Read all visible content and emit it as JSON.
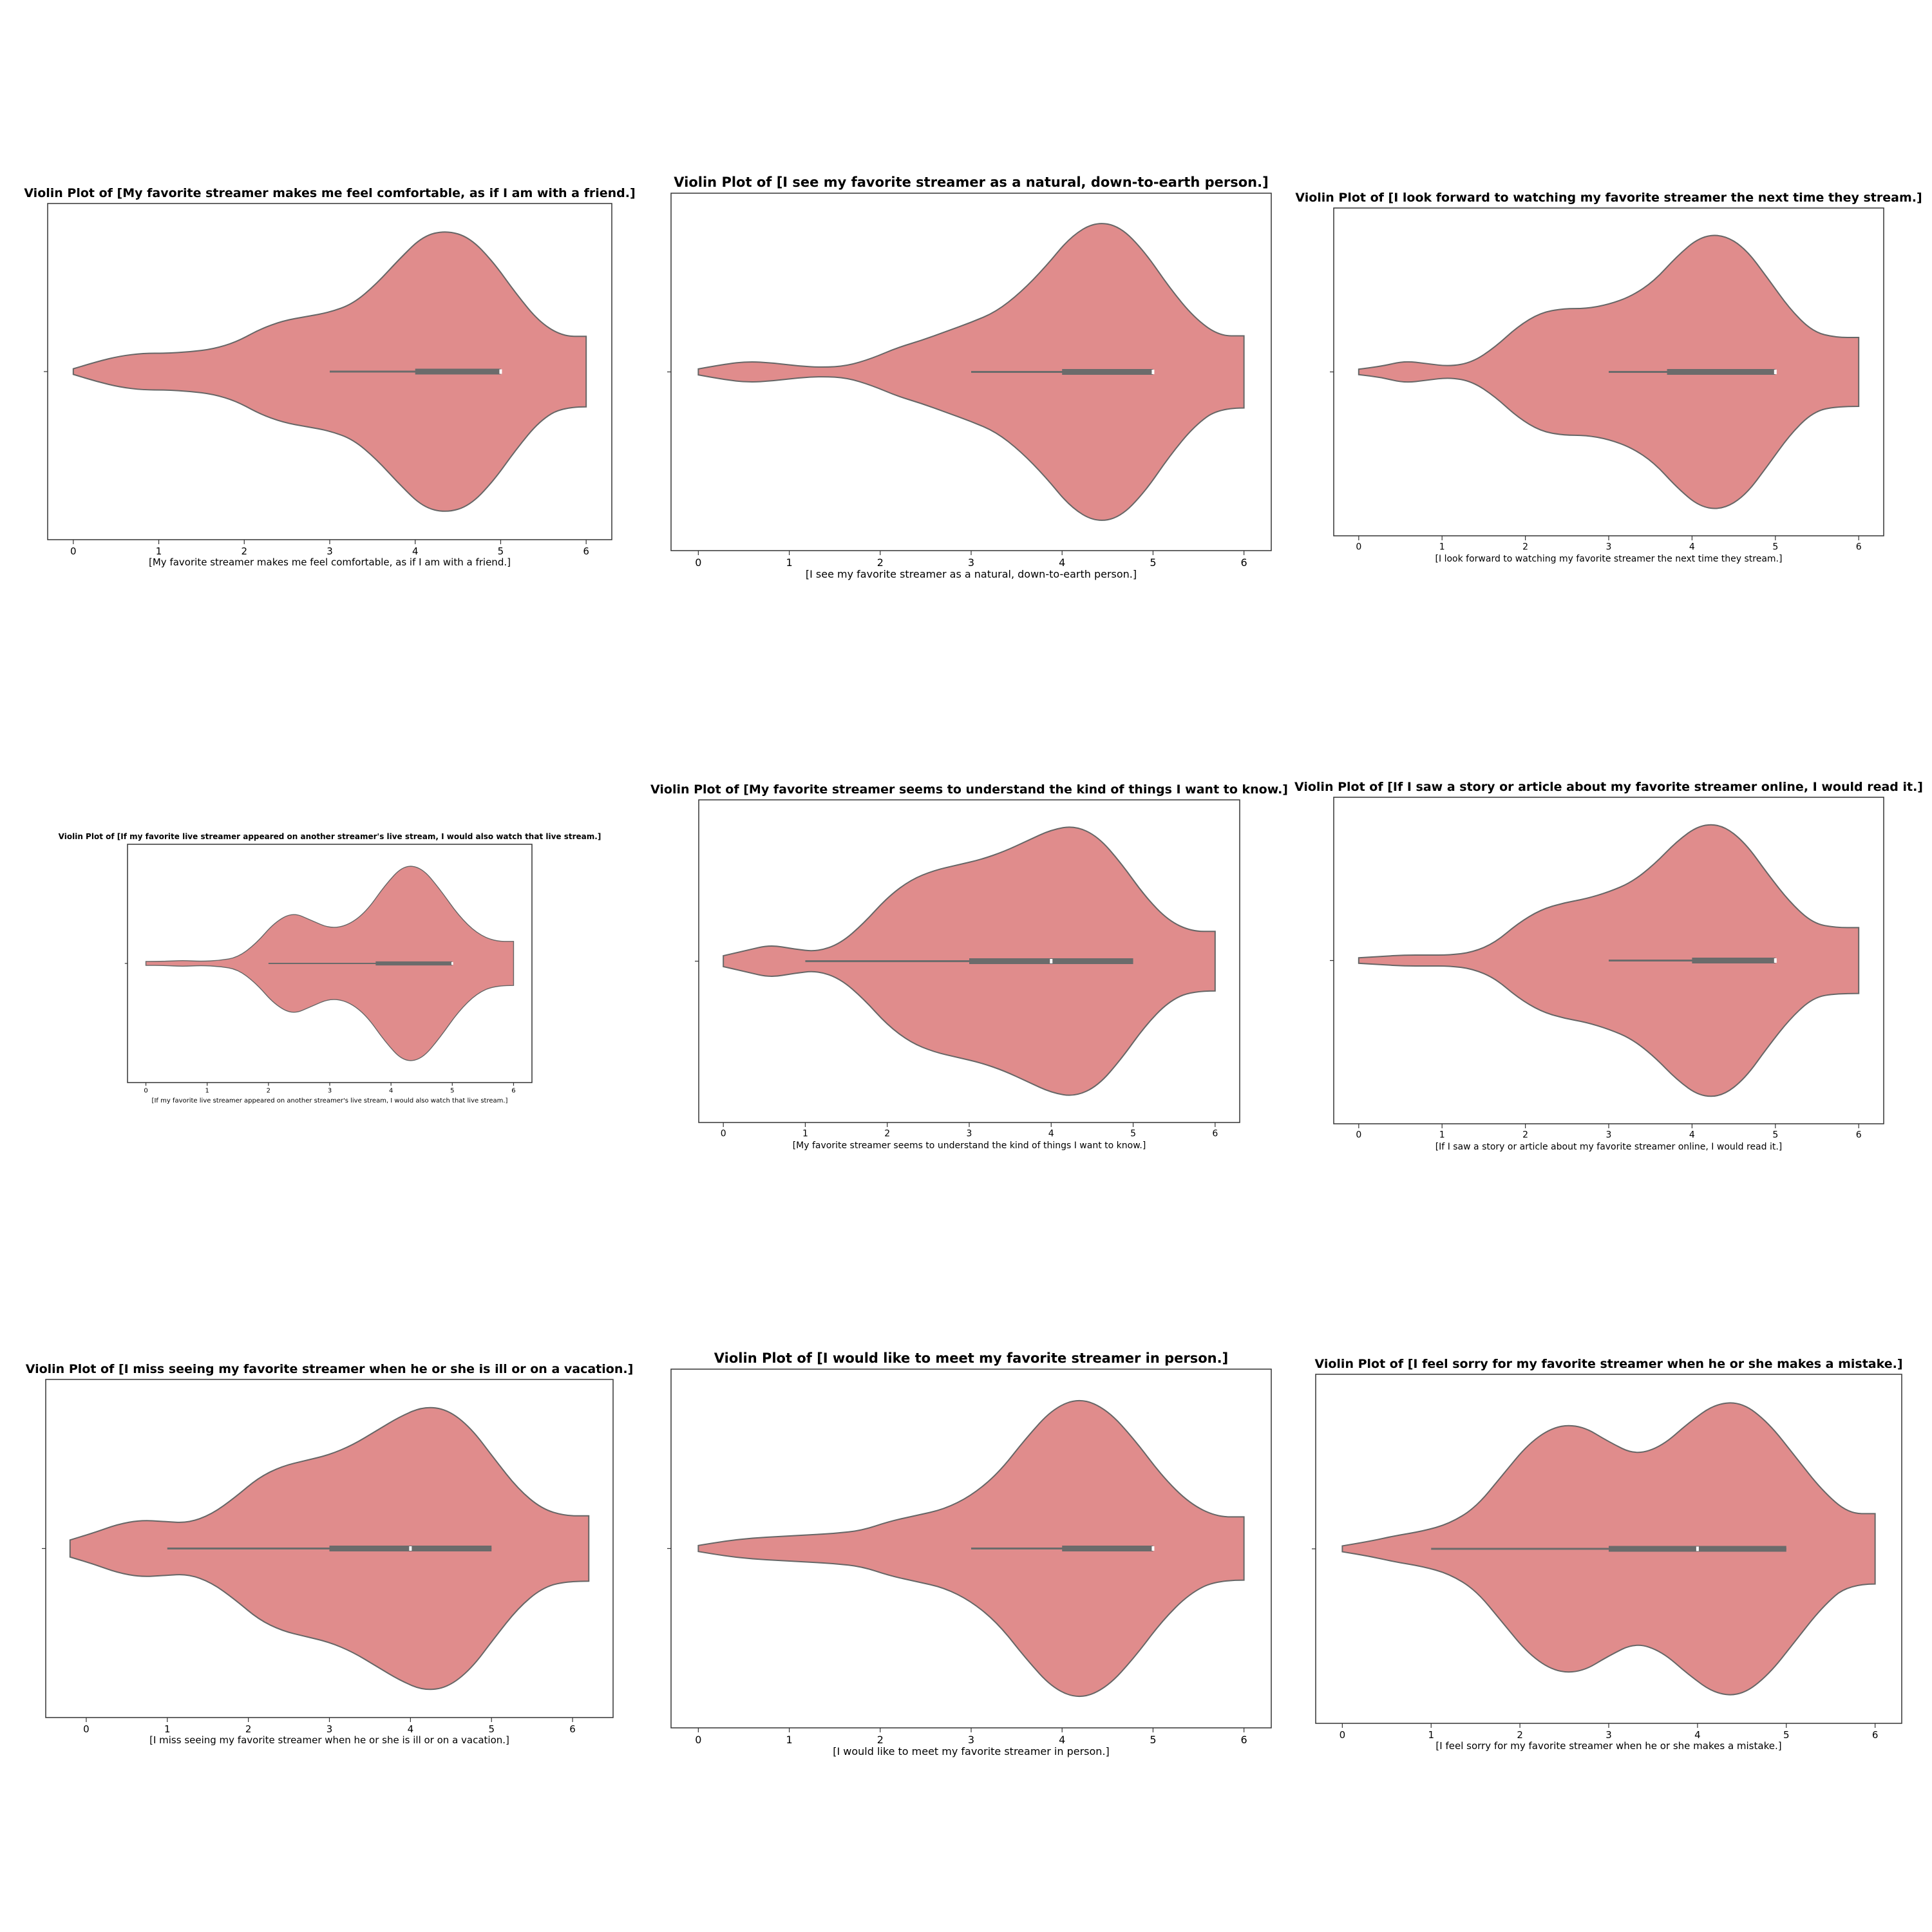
{
  "violin_color": "#e08c8c",
  "violin_edge_color": "#666666",
  "box_color": "#6b6b6b",
  "median_color": "#ffffff",
  "chart_data": [
    {
      "type": "violin",
      "title": "Violin Plot of [My favorite streamer makes me feel comfortable, as if I am with a friend.]",
      "xlabel": "[My favorite streamer makes me feel comfortable, as if I am with a friend.]",
      "ylabel": "",
      "xlim": [
        -0.3,
        6.3
      ],
      "xticks": [
        0,
        1,
        2,
        3,
        4,
        5,
        6
      ],
      "range": [
        0,
        6
      ],
      "density": [
        0.02,
        0.07,
        0.11,
        0.13,
        0.13,
        0.14,
        0.16,
        0.21,
        0.3,
        0.36,
        0.39,
        0.42,
        0.48,
        0.62,
        0.8,
        0.96,
        1.0,
        0.95,
        0.78,
        0.55,
        0.35,
        0.25,
        0.25
      ],
      "box": {
        "whisker_low": 3,
        "q1": 4,
        "median": 5,
        "q3": 5,
        "whisker_high": 5
      }
    },
    {
      "type": "violin",
      "title": "Violin Plot of [I see my favorite streamer as a natural, down-to-earth person.]",
      "xlabel": "[I see my favorite streamer as a natural, down-to-earth person.]",
      "ylabel": "",
      "xlim": [
        -0.3,
        6.3
      ],
      "xticks": [
        0,
        1,
        2,
        3,
        4,
        5,
        6
      ],
      "range": [
        0,
        6
      ],
      "density": [
        0.02,
        0.05,
        0.07,
        0.06,
        0.04,
        0.03,
        0.04,
        0.09,
        0.16,
        0.21,
        0.27,
        0.33,
        0.4,
        0.53,
        0.7,
        0.9,
        1.0,
        0.97,
        0.8,
        0.56,
        0.36,
        0.24,
        0.24
      ],
      "box": {
        "whisker_low": 3,
        "q1": 4,
        "median": 5,
        "q3": 5,
        "whisker_high": 5
      }
    },
    {
      "type": "violin",
      "title": "Violin Plot of [I look forward to watching my favorite streamer the next time they stream.]",
      "xlabel": "[I look forward to watching my favorite streamer the next time they stream.]",
      "ylabel": "",
      "xlim": [
        -0.3,
        6.3
      ],
      "xticks": [
        0,
        1,
        2,
        3,
        4,
        5,
        6
      ],
      "range": [
        0,
        6
      ],
      "density": [
        0.02,
        0.04,
        0.08,
        0.06,
        0.04,
        0.07,
        0.18,
        0.33,
        0.43,
        0.46,
        0.46,
        0.49,
        0.55,
        0.66,
        0.84,
        0.98,
        1.0,
        0.9,
        0.68,
        0.45,
        0.29,
        0.25,
        0.25
      ],
      "box": {
        "whisker_low": 3,
        "q1": 3.7,
        "median": 5,
        "q3": 5,
        "whisker_high": 5
      }
    },
    {
      "type": "violin",
      "title": "Violin Plot of [If my favorite live streamer appeared on another streamer's live stream, I would also watch that live stream.]",
      "xlabel": "[If my favorite live streamer appeared on another streamer's live stream, I would also watch that live stream.]",
      "ylabel": "",
      "xlim": [
        -0.3,
        6.3
      ],
      "xticks": [
        0,
        1,
        2,
        3,
        4,
        5,
        6
      ],
      "range": [
        0,
        6
      ],
      "density": [
        0.02,
        0.02,
        0.03,
        0.02,
        0.03,
        0.06,
        0.2,
        0.41,
        0.51,
        0.43,
        0.35,
        0.38,
        0.52,
        0.78,
        0.98,
        0.96,
        0.74,
        0.48,
        0.3,
        0.22,
        0.22
      ],
      "box": {
        "whisker_low": 2,
        "q1": 3.75,
        "median": 5,
        "q3": 5,
        "whisker_high": 5
      }
    },
    {
      "type": "violin",
      "title": "Violin Plot of [My favorite streamer seems to understand the kind of things I want to know.]",
      "xlabel": "[My favorite streamer seems to understand the kind of things I want to know.]",
      "ylabel": "",
      "xlim": [
        -0.3,
        6.3
      ],
      "xticks": [
        0,
        1,
        2,
        3,
        4,
        5,
        6
      ],
      "range": [
        0,
        6
      ],
      "density": [
        0.04,
        0.08,
        0.12,
        0.09,
        0.07,
        0.13,
        0.28,
        0.47,
        0.6,
        0.67,
        0.71,
        0.75,
        0.81,
        0.89,
        0.97,
        1.0,
        0.92,
        0.72,
        0.48,
        0.3,
        0.22,
        0.22
      ],
      "box": {
        "whisker_low": 1,
        "q1": 3,
        "median": 4,
        "q3": 5,
        "whisker_high": 5
      }
    },
    {
      "type": "violin",
      "title": "Violin Plot of [If I saw a story or article about my favorite streamer online, I would read it.]",
      "xlabel": "[If I saw a story or article about my favorite streamer online, I would read it.]",
      "ylabel": "",
      "xlim": [
        -0.3,
        6.3
      ],
      "xticks": [
        0,
        1,
        2,
        3,
        4,
        5,
        6
      ],
      "range": [
        0,
        6
      ],
      "density": [
        0.02,
        0.03,
        0.04,
        0.04,
        0.04,
        0.06,
        0.13,
        0.27,
        0.37,
        0.42,
        0.45,
        0.5,
        0.57,
        0.7,
        0.87,
        0.99,
        0.99,
        0.86,
        0.63,
        0.42,
        0.27,
        0.24,
        0.24
      ],
      "box": {
        "whisker_low": 3,
        "q1": 4,
        "median": 5,
        "q3": 5,
        "whisker_high": 5
      }
    },
    {
      "type": "violin",
      "title": "Violin Plot of [I miss seeing my favorite streamer when he or she is ill or on a vacation.]",
      "xlabel": "[I miss seeing my favorite streamer when he or she is ill or on a vacation.]",
      "ylabel": "",
      "xlim": [
        -0.5,
        6.5
      ],
      "xticks": [
        0,
        1,
        2,
        3,
        4,
        5,
        6
      ],
      "range": [
        -0.2,
        6.2
      ],
      "density": [
        0.06,
        0.11,
        0.17,
        0.2,
        0.19,
        0.18,
        0.24,
        0.36,
        0.5,
        0.58,
        0.62,
        0.66,
        0.73,
        0.83,
        0.93,
        1.0,
        0.98,
        0.85,
        0.63,
        0.42,
        0.28,
        0.23,
        0.23
      ],
      "box": {
        "whisker_low": 1,
        "q1": 3,
        "median": 4,
        "q3": 5,
        "whisker_high": 5
      }
    },
    {
      "type": "violin",
      "title": "Violin Plot of [I would like to meet my favorite streamer in person.]",
      "xlabel": "[I would like to meet my favorite streamer in person.]",
      "ylabel": "",
      "xlim": [
        -0.3,
        6.3
      ],
      "xticks": [
        0,
        1,
        2,
        3,
        4,
        5,
        6
      ],
      "range": [
        0,
        6
      ],
      "density": [
        0.02,
        0.05,
        0.07,
        0.08,
        0.09,
        0.1,
        0.12,
        0.18,
        0.22,
        0.26,
        0.35,
        0.5,
        0.73,
        0.93,
        1.0,
        0.92,
        0.72,
        0.48,
        0.3,
        0.21,
        0.21
      ],
      "box": {
        "whisker_low": 3,
        "q1": 4,
        "median": 5,
        "q3": 5,
        "whisker_high": 5
      }
    },
    {
      "type": "violin",
      "title": "Violin Plot of [I feel sorry for my favorite streamer when he or she makes a mistake.]",
      "xlabel": "[I feel sorry for my favorite streamer when he or she makes a mistake.]",
      "ylabel": "",
      "xlim": [
        -0.3,
        6.3
      ],
      "xticks": [
        0,
        1,
        2,
        3,
        4,
        5,
        6
      ],
      "range": [
        0,
        6
      ],
      "density": [
        0.02,
        0.05,
        0.09,
        0.12,
        0.17,
        0.28,
        0.5,
        0.72,
        0.84,
        0.84,
        0.73,
        0.64,
        0.7,
        0.86,
        0.99,
        1.0,
        0.86,
        0.63,
        0.4,
        0.24,
        0.24
      ],
      "box": {
        "whisker_low": 1,
        "q1": 3,
        "median": 4,
        "q3": 5,
        "whisker_high": 5
      }
    }
  ]
}
